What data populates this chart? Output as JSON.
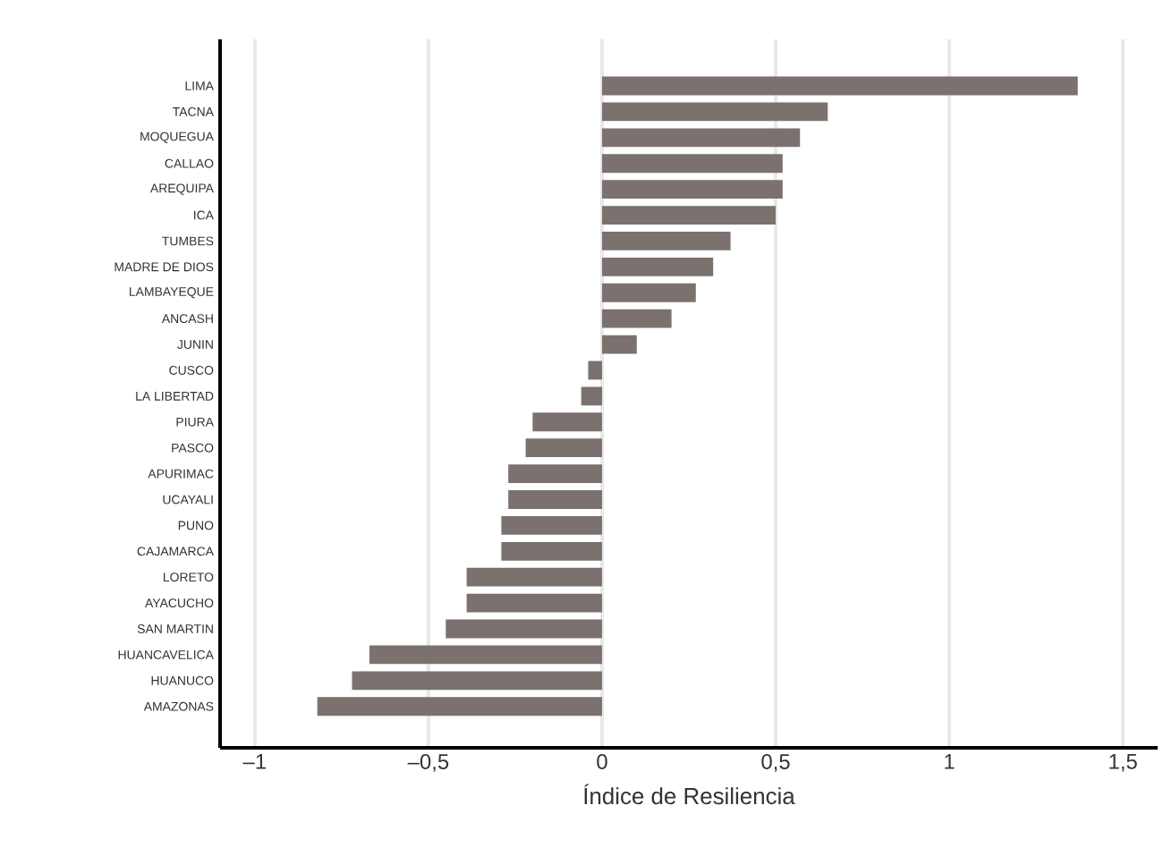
{
  "chart_data": {
    "type": "bar",
    "orientation": "horizontal",
    "xlabel": "Índice de Resiliencia",
    "categories": [
      "LIMA",
      "TACNA",
      "MOQUEGUA",
      "CALLAO",
      "AREQUIPA",
      "ICA",
      "TUMBES",
      "MADRE DE DIOS",
      "LAMBAYEQUE",
      "ANCASH",
      "JUNIN",
      "CUSCO",
      "LA LIBERTAD",
      "PIURA",
      "PASCO",
      "APURIMAC",
      "UCAYALI",
      "PUNO",
      "CAJAMARCA",
      "LORETO",
      "AYACUCHO",
      "SAN MARTIN",
      "HUANCAVELICA",
      "HUANUCO",
      "AMAZONAS"
    ],
    "values": [
      1.37,
      0.65,
      0.57,
      0.52,
      0.52,
      0.5,
      0.37,
      0.32,
      0.27,
      0.2,
      0.1,
      -0.04,
      -0.06,
      -0.2,
      -0.22,
      -0.27,
      -0.27,
      -0.29,
      -0.29,
      -0.39,
      -0.39,
      -0.45,
      -0.67,
      -0.72,
      -0.82
    ],
    "color": "#7b716e",
    "xlim": [
      -1.1,
      1.6
    ],
    "xticks": [
      {
        "value": -1,
        "label": "–1"
      },
      {
        "value": -0.5,
        "label": "–0,5"
      },
      0,
      {
        "value": 0.5,
        "label": "0,5"
      },
      1,
      {
        "value": 1.5,
        "label": "1,5"
      }
    ],
    "grid": "x"
  }
}
